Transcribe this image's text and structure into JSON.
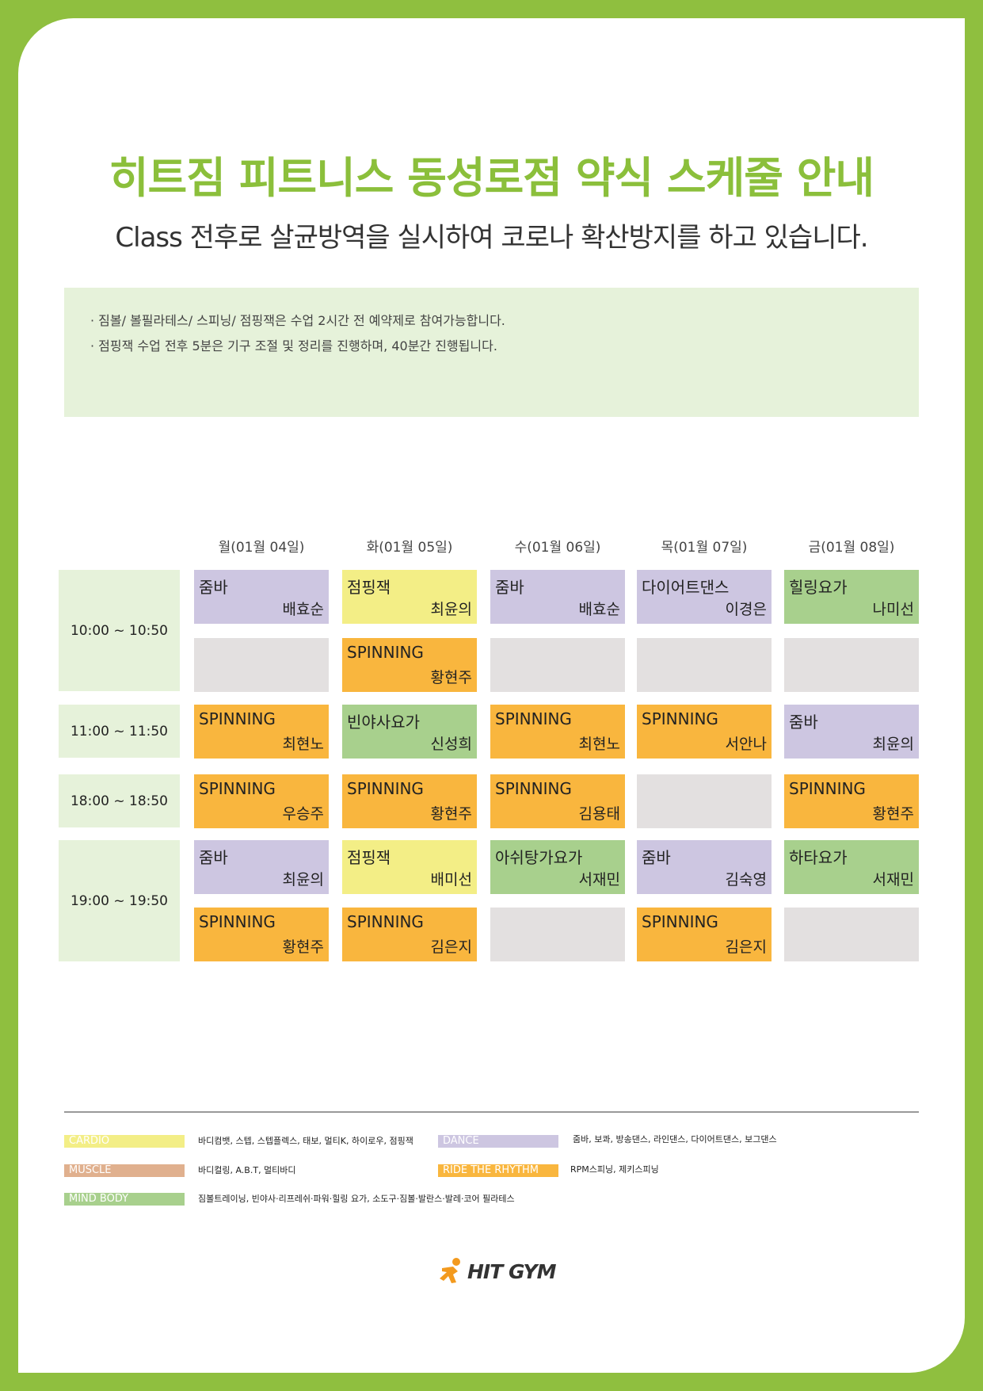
{
  "header": {
    "title": "히트짐 피트니스 동성로점 약식 스케줄 안내",
    "subtitle": "Class 전후로 살균방역을 실시하여 코로나 확산방지를 하고 있습니다."
  },
  "notice": [
    "· 짐볼/ 볼필라테스/ 스피닝/ 점핑잭은 수업 2시간 전 예약제로 참여가능합니다.",
    "· 점핑잭 수업 전후 5분은 기구 조절 및 정리를 진행하며, 40분간 진행됩니다."
  ],
  "days": [
    "월(01월 04일)",
    "화(01월 05일)",
    "수(01월 06일)",
    "목(01월 07일)",
    "금(01월 08일)"
  ],
  "times": [
    "10:00 ~ 10:50",
    "11:00 ~ 11:50",
    "18:00 ~ 18:50",
    "19:00 ~ 19:50"
  ],
  "schedule": {
    "r10a": [
      {
        "name": "줌바",
        "trainer": "배효순",
        "color": "#cdc6e1"
      },
      {
        "name": "점핑잭",
        "trainer": "최윤의",
        "color": "#f3ee86"
      },
      {
        "name": "줌바",
        "trainer": "배효순",
        "color": "#cdc6e1"
      },
      {
        "name": "다이어트댄스",
        "trainer": "이경은",
        "color": "#cdc6e1"
      },
      {
        "name": "힐링요가",
        "trainer": "나미선",
        "color": "#a8d08d"
      }
    ],
    "r10b": [
      null,
      {
        "name": "SPINNING",
        "trainer": "황현주",
        "color": "#f9b63e"
      },
      null,
      null,
      null
    ],
    "r11": [
      {
        "name": "SPINNING",
        "trainer": "최현노",
        "color": "#f9b63e"
      },
      {
        "name": "빈야사요가",
        "trainer": "신성희",
        "color": "#a8d08d"
      },
      {
        "name": "SPINNING",
        "trainer": "최현노",
        "color": "#f9b63e"
      },
      {
        "name": "SPINNING",
        "trainer": "서안나",
        "color": "#f9b63e"
      },
      {
        "name": "줌바",
        "trainer": "최윤의",
        "color": "#cdc6e1"
      }
    ],
    "r18": [
      {
        "name": "SPINNING",
        "trainer": "우승주",
        "color": "#f9b63e"
      },
      {
        "name": "SPINNING",
        "trainer": "황현주",
        "color": "#f9b63e"
      },
      {
        "name": "SPINNING",
        "trainer": "김용태",
        "color": "#f9b63e"
      },
      null,
      {
        "name": "SPINNING",
        "trainer": "황현주",
        "color": "#f9b63e"
      }
    ],
    "r19a": [
      {
        "name": "줌바",
        "trainer": "최윤의",
        "color": "#cdc6e1"
      },
      {
        "name": "점핑잭",
        "trainer": "배미선",
        "color": "#f3ee86"
      },
      {
        "name": "아쉬탕가요가",
        "trainer": "서재민",
        "color": "#a8d08d"
      },
      {
        "name": "줌바",
        "trainer": "김숙영",
        "color": "#cdc6e1"
      },
      {
        "name": "하타요가",
        "trainer": "서재민",
        "color": "#a8d08d"
      }
    ],
    "r19b": [
      {
        "name": "SPINNING",
        "trainer": "황현주",
        "color": "#f9b63e"
      },
      {
        "name": "SPINNING",
        "trainer": "김은지",
        "color": "#f9b63e"
      },
      null,
      {
        "name": "SPINNING",
        "trainer": "김은지",
        "color": "#f9b63e"
      },
      null
    ]
  },
  "legend": [
    {
      "tag": "CARDIO",
      "color": "#f3ee86",
      "desc": "바디컴뱃, 스텝, 스텝플렉스, 태보, 멀티K, 하이로우, 점핑잭"
    },
    {
      "tag": "DANCE",
      "color": "#cdc6e1",
      "desc": "줌바, 보콰, 방송댄스, 라인댄스, 다이어트댄스, 보그댄스"
    },
    {
      "tag": "MUSCLE",
      "color": "#e0b08e",
      "desc": "바디컬링, A.B.T, 멀티바디"
    },
    {
      "tag": "RIDE THE RHYTHM",
      "color": "#f9b63e",
      "desc": "RPM스피닝, 제키스피닝"
    },
    {
      "tag": "MIND BODY",
      "color": "#a8d08d",
      "desc": "짐볼트레이닝, 빈야사·리프레쉬·파워·힐링 요가, 소도구·짐볼·발란스·발레·코어 필라테스"
    }
  ],
  "logo": {
    "text": "HIT GYM",
    "accent": "#f39a1e"
  }
}
